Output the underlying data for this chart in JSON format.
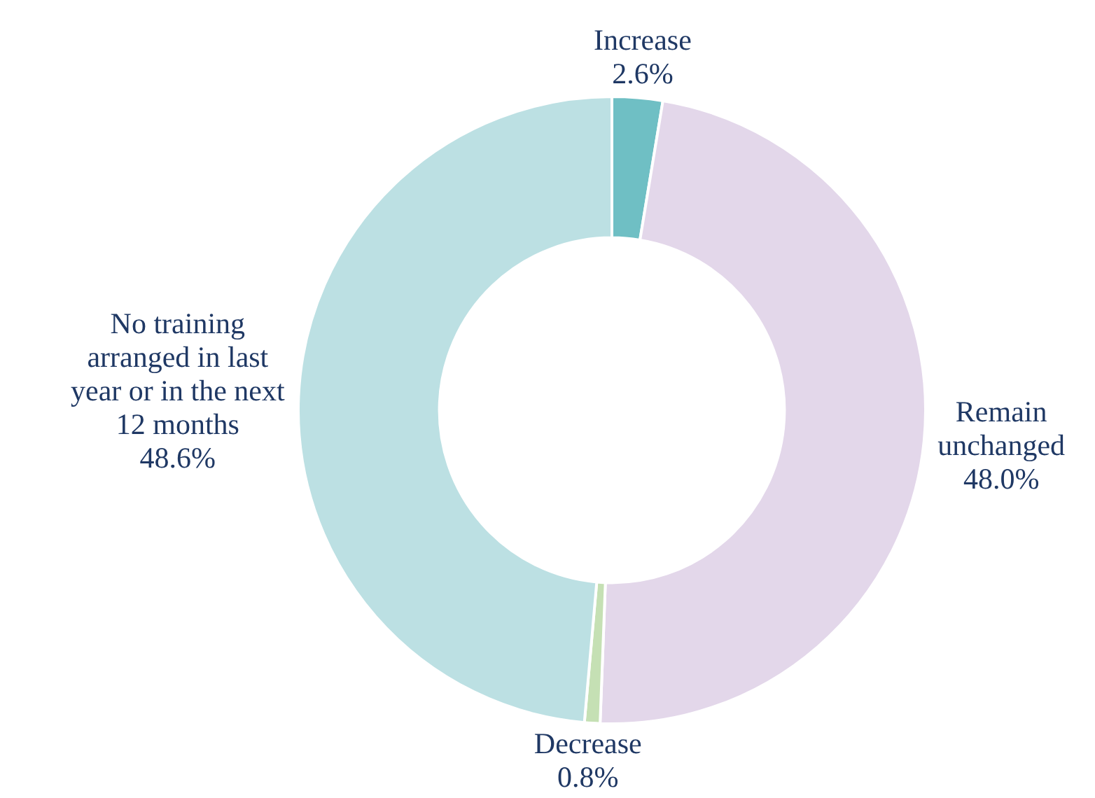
{
  "chart_data": {
    "type": "donut",
    "categories": [
      "Increase",
      "Remain unchanged",
      "Decrease",
      "No training arranged in last year or in the next 12 months"
    ],
    "values": [
      2.6,
      48.0,
      0.8,
      48.6
    ],
    "value_labels": [
      "2.6%",
      "48.0%",
      "0.8%",
      "48.6%"
    ],
    "colors": [
      "#6fbfc4",
      "#e3d7ea",
      "#c5e0b4",
      "#bce0e3"
    ],
    "legend": false
  }
}
